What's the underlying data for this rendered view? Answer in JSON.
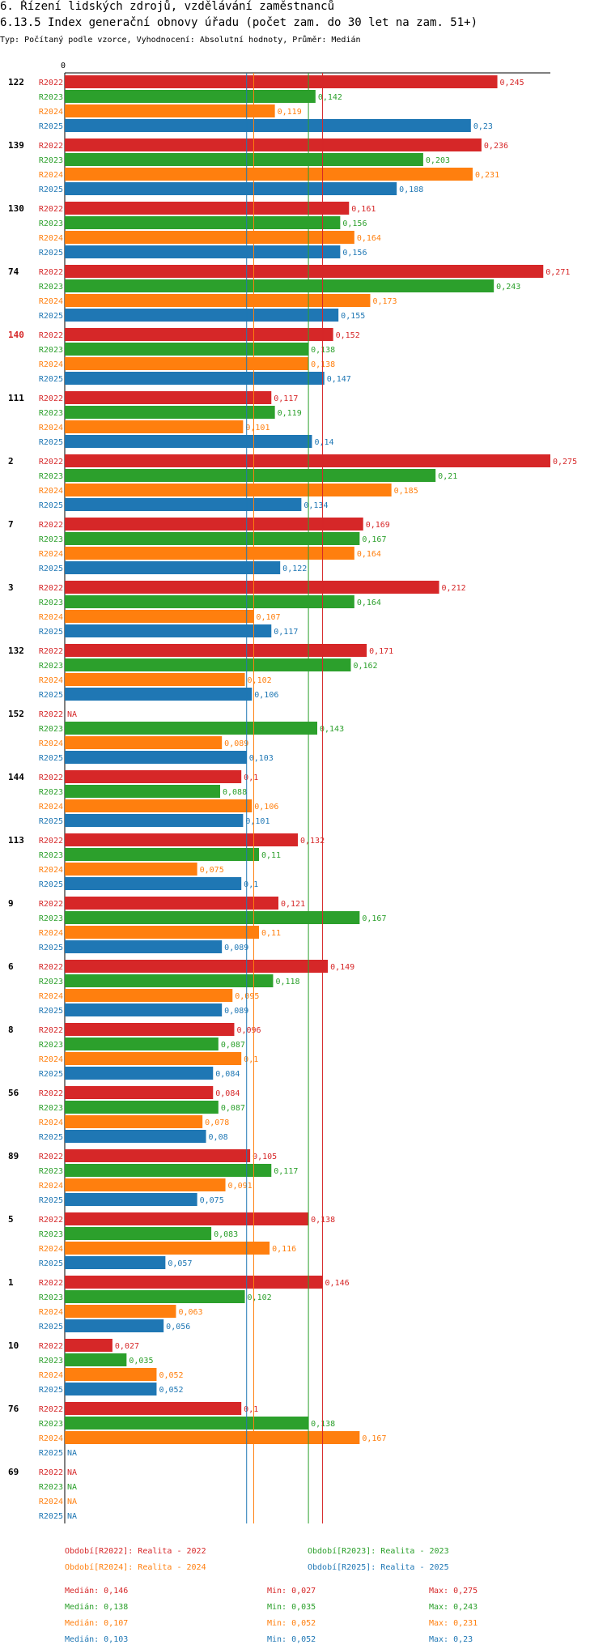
{
  "header": {
    "title": "6. Řízení lidských zdrojů, vzdělávání zaměstnanců",
    "subtitle": "6.13.5 Index generační obnovy úřadu (počet zam. do 30 let na zam. 51+)",
    "meta": "Typ: Počítaný podle vzorce, Vyhodnocení: Absolutní hodnoty, Průměr: Medián"
  },
  "chart_data": {
    "type": "bar",
    "orientation": "horizontal",
    "axis_zero_label": "0",
    "xlim": [
      0,
      0.275
    ],
    "na_label": "NA",
    "series": [
      {
        "name": "R2022",
        "label": "R2022",
        "color": "#d62728"
      },
      {
        "name": "R2023",
        "label": "R2023",
        "color": "#2ca02c"
      },
      {
        "name": "R2024",
        "label": "R2024",
        "color": "#ff7f0e"
      },
      {
        "name": "R2025",
        "label": "R2025",
        "color": "#1f77b4"
      }
    ],
    "groups": [
      {
        "label": "122",
        "highlight": false,
        "values": [
          0.245,
          0.142,
          0.119,
          0.23
        ]
      },
      {
        "label": "139",
        "highlight": false,
        "values": [
          0.236,
          0.203,
          0.231,
          0.188
        ]
      },
      {
        "label": "130",
        "highlight": false,
        "values": [
          0.161,
          0.156,
          0.164,
          0.156
        ]
      },
      {
        "label": "74",
        "highlight": false,
        "values": [
          0.271,
          0.243,
          0.173,
          0.155
        ]
      },
      {
        "label": "140",
        "highlight": true,
        "values": [
          0.152,
          0.138,
          0.138,
          0.147
        ]
      },
      {
        "label": "111",
        "highlight": false,
        "values": [
          0.117,
          0.119,
          0.101,
          0.14
        ]
      },
      {
        "label": "2",
        "highlight": false,
        "values": [
          0.275,
          0.21,
          0.185,
          0.134
        ]
      },
      {
        "label": "7",
        "highlight": false,
        "values": [
          0.169,
          0.167,
          0.164,
          0.122
        ]
      },
      {
        "label": "3",
        "highlight": false,
        "values": [
          0.212,
          0.164,
          0.107,
          0.117
        ]
      },
      {
        "label": "132",
        "highlight": false,
        "values": [
          0.171,
          0.162,
          0.102,
          0.106
        ]
      },
      {
        "label": "152",
        "highlight": false,
        "values": [
          null,
          0.143,
          0.089,
          0.103
        ]
      },
      {
        "label": "144",
        "highlight": false,
        "values": [
          0.1,
          0.088,
          0.106,
          0.101
        ]
      },
      {
        "label": "113",
        "highlight": false,
        "values": [
          0.132,
          0.11,
          0.075,
          0.1
        ]
      },
      {
        "label": "9",
        "highlight": false,
        "values": [
          0.121,
          0.167,
          0.11,
          0.089
        ]
      },
      {
        "label": "6",
        "highlight": false,
        "values": [
          0.149,
          0.118,
          0.095,
          0.089
        ]
      },
      {
        "label": "8",
        "highlight": false,
        "values": [
          0.096,
          0.087,
          0.1,
          0.084
        ]
      },
      {
        "label": "56",
        "highlight": false,
        "values": [
          0.084,
          0.087,
          0.078,
          0.08
        ]
      },
      {
        "label": "89",
        "highlight": false,
        "values": [
          0.105,
          0.117,
          0.091,
          0.075
        ]
      },
      {
        "label": "5",
        "highlight": false,
        "values": [
          0.138,
          0.083,
          0.116,
          0.057
        ]
      },
      {
        "label": "1",
        "highlight": false,
        "values": [
          0.146,
          0.102,
          0.063,
          0.056
        ]
      },
      {
        "label": "10",
        "highlight": false,
        "values": [
          0.027,
          0.035,
          0.052,
          0.052
        ]
      },
      {
        "label": "76",
        "highlight": false,
        "values": [
          0.1,
          0.138,
          0.167,
          null
        ]
      },
      {
        "label": "69",
        "highlight": false,
        "values": [
          null,
          null,
          null,
          null
        ]
      }
    ],
    "reference_lines": [
      {
        "series": "R2022",
        "value": 0.146,
        "color": "#d62728"
      },
      {
        "series": "R2023",
        "value": 0.138,
        "color": "#2ca02c"
      },
      {
        "series": "R2024",
        "value": 0.107,
        "color": "#ff7f0e"
      },
      {
        "series": "R2025",
        "value": 0.103,
        "color": "#1f77b4"
      }
    ]
  },
  "legend": {
    "periods": [
      {
        "text": "Období[R2022]: Realita - 2022",
        "color": "#d62728"
      },
      {
        "text": "Období[R2023]: Realita - 2023",
        "color": "#2ca02c"
      },
      {
        "text": "Období[R2024]: Realita - 2024",
        "color": "#ff7f0e"
      },
      {
        "text": "Období[R2025]: Realita - 2025",
        "color": "#1f77b4"
      }
    ],
    "stats": [
      {
        "median": "Medián: 0,146",
        "min": "Min: 0,027",
        "max": "Max: 0,275",
        "color": "#d62728"
      },
      {
        "median": "Medián: 0,138",
        "min": "Min: 0,035",
        "max": "Max: 0,243",
        "color": "#2ca02c"
      },
      {
        "median": "Medián: 0,107",
        "min": "Min: 0,052",
        "max": "Max: 0,231",
        "color": "#ff7f0e"
      },
      {
        "median": "Medián: 0,103",
        "min": "Min: 0,052",
        "max": "Max: 0,23",
        "color": "#1f77b4"
      }
    ]
  }
}
